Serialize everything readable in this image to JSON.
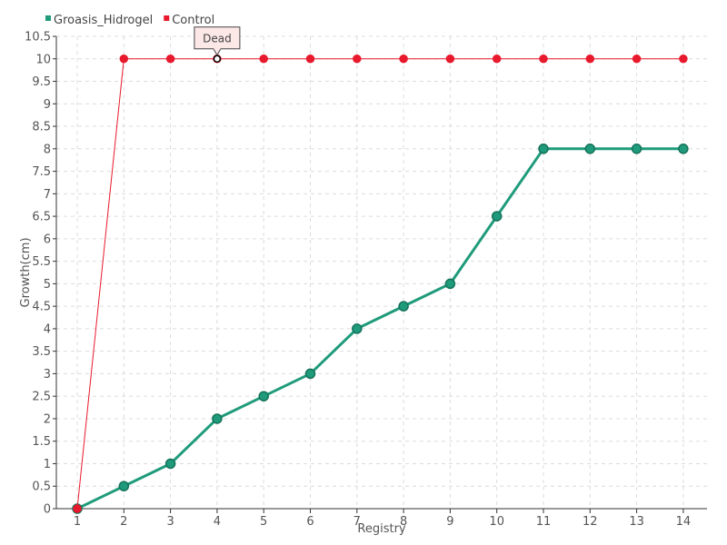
{
  "chart_data": {
    "type": "line",
    "title": "",
    "xlabel": "Registry",
    "ylabel": "Growth(cm)",
    "categories": [
      "1",
      "2",
      "3",
      "4",
      "5",
      "6",
      "7",
      "8",
      "9",
      "10",
      "11",
      "12",
      "13",
      "14"
    ],
    "series": [
      {
        "name": "Groasis_Hidrogel",
        "color": "#1f9b7b",
        "values": [
          0,
          0.5,
          1,
          2,
          2.5,
          3,
          4,
          4.5,
          5,
          6.5,
          8,
          8,
          8,
          8
        ]
      },
      {
        "name": "Control",
        "color": "#e8192c",
        "values": [
          0,
          10,
          10,
          10,
          10,
          10,
          10,
          10,
          10,
          10,
          10,
          10,
          10,
          10
        ]
      }
    ],
    "ylim": [
      0,
      10.5
    ],
    "yticks": [
      "0",
      "0.5",
      "1",
      "1.5",
      "2",
      "2.5",
      "3",
      "3.5",
      "4",
      "4.5",
      "5",
      "5.5",
      "6",
      "6.5",
      "7",
      "7.5",
      "8",
      "8.5",
      "9",
      "9.5",
      "10",
      "10.5"
    ],
    "grid": true,
    "legend_position": "top-left",
    "annotation": {
      "text": "Dead",
      "series": "Control",
      "category": "4"
    }
  }
}
